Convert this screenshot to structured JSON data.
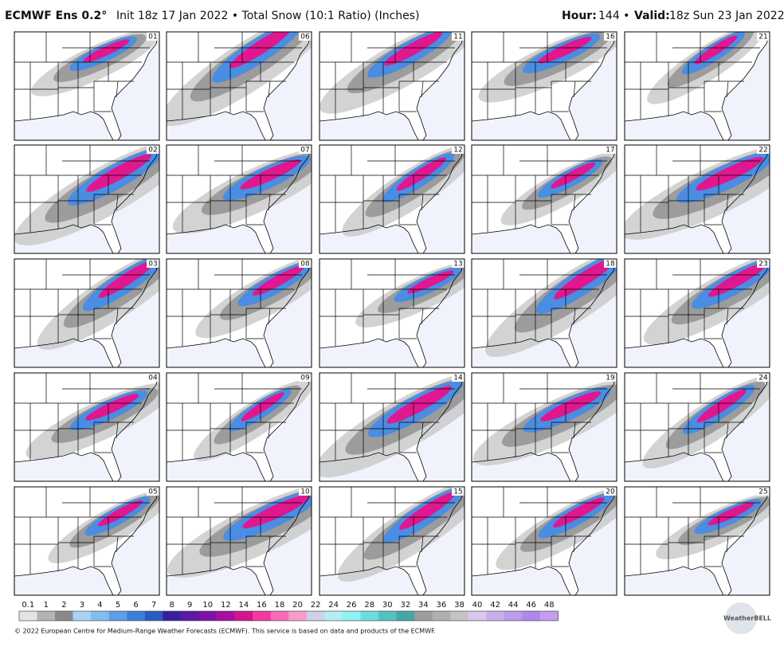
{
  "header": {
    "model": "ECMWF Ens 0.2°",
    "init": "Init 18z 17 Jan 2022 • Total Snow (10:1 Ratio) (Inches)",
    "hour_label": "Hour:",
    "hour": "144 •",
    "valid_label": "Valid:",
    "valid": "18z Sun 23 Jan 2022"
  },
  "panels": [
    "01",
    "02",
    "03",
    "04",
    "05",
    "06",
    "07",
    "08",
    "09",
    "10",
    "11",
    "12",
    "13",
    "14",
    "15",
    "16",
    "17",
    "18",
    "19",
    "20",
    "21",
    "22",
    "23",
    "24",
    "25"
  ],
  "legend": {
    "levels": [
      {
        "label": "0.1",
        "color": "#e4e4e4"
      },
      {
        "label": "1",
        "color": "#b4b4b4"
      },
      {
        "label": "2",
        "color": "#8a8a8a"
      },
      {
        "label": "3",
        "color": "#a9d3f5"
      },
      {
        "label": "4",
        "color": "#82bdf0"
      },
      {
        "label": "5",
        "color": "#5c9fe6"
      },
      {
        "label": "6",
        "color": "#3b7fd9"
      },
      {
        "label": "7",
        "color": "#2a5cc0"
      },
      {
        "label": "8",
        "color": "#3a1f9c"
      },
      {
        "label": "9",
        "color": "#5a1aa5"
      },
      {
        "label": "10",
        "color": "#7d12a8"
      },
      {
        "label": "12",
        "color": "#a80fa0"
      },
      {
        "label": "14",
        "color": "#d6138f"
      },
      {
        "label": "16",
        "color": "#f03b9c"
      },
      {
        "label": "18",
        "color": "#f56cb5"
      },
      {
        "label": "20",
        "color": "#f89bcd"
      },
      {
        "label": "22",
        "color": "#cfd0ea"
      },
      {
        "label": "24",
        "color": "#b6ecf3"
      },
      {
        "label": "26",
        "color": "#8ef2f2"
      },
      {
        "label": "28",
        "color": "#6ddcdc"
      },
      {
        "label": "30",
        "color": "#55c2c2"
      },
      {
        "label": "32",
        "color": "#47a7a7"
      },
      {
        "label": "34",
        "color": "#9c9c9c"
      },
      {
        "label": "36",
        "color": "#b0b0b0"
      },
      {
        "label": "38",
        "color": "#c4c4c4"
      },
      {
        "label": "40",
        "color": "#d8c8f0"
      },
      {
        "label": "42",
        "color": "#c8b0ee"
      },
      {
        "label": "44",
        "color": "#bb9bec"
      },
      {
        "label": "46",
        "color": "#ae88ea"
      },
      {
        "label": "48",
        "color": "#c59cf2"
      }
    ]
  },
  "footer": "© 2022 European Centre for Medium-Range Weather Forecasts (ECMWF). This service is based on data and products of the ECMWF.",
  "logo": "WeatherBELL"
}
